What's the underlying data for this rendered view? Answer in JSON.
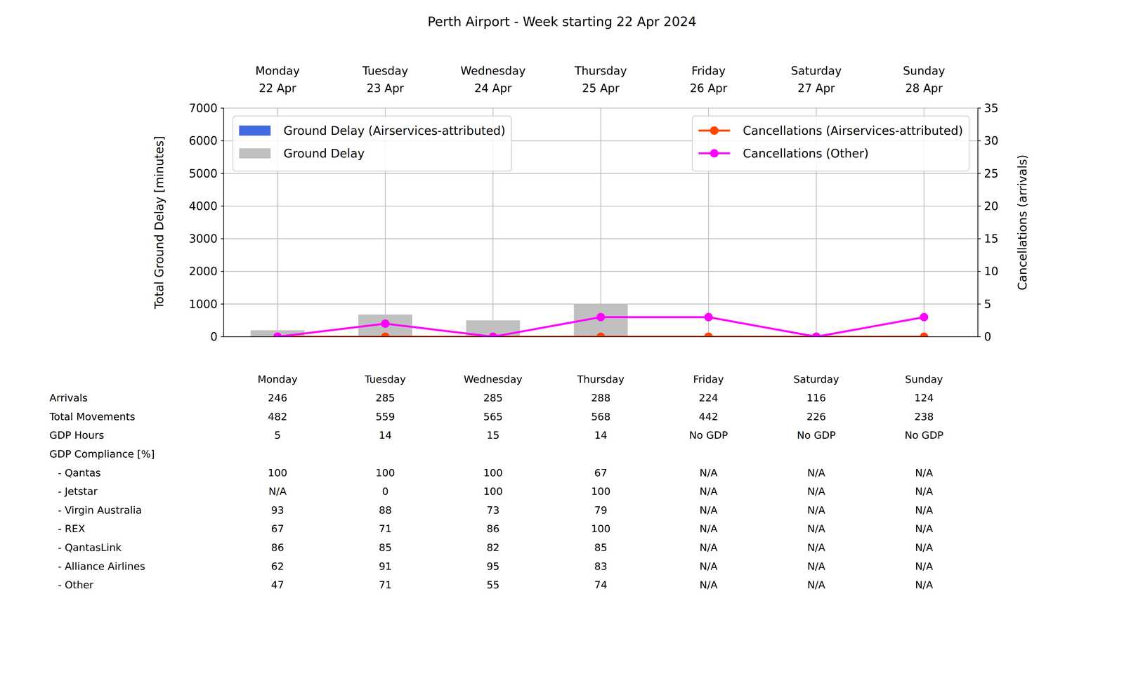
{
  "chart_data": {
    "type": "bar",
    "title": "Perth Airport - Week starting 22 Apr 2024",
    "categories": [
      "Monday\n22 Apr",
      "Tuesday\n23 Apr",
      "Wednesday\n24 Apr",
      "Thursday\n25 Apr",
      "Friday\n26 Apr",
      "Saturday\n27 Apr",
      "Sunday\n28 Apr"
    ],
    "y_label": "Total Ground Delay [minutes]",
    "y2_label": "Cancellations (arrivals)",
    "ylim": [
      0,
      7000
    ],
    "yticks": [
      0,
      1000,
      2000,
      3000,
      4000,
      5000,
      6000,
      7000
    ],
    "y2lim": [
      0,
      35
    ],
    "y2ticks": [
      0,
      5,
      10,
      15,
      20,
      25,
      30,
      35
    ],
    "grid": true,
    "legend": "upper left",
    "series": [
      {
        "name": "Ground Delay (Airservices-attributed)",
        "type": "bar",
        "color": "#4169e1",
        "values": [
          0,
          0,
          0,
          0,
          0,
          0,
          0
        ]
      },
      {
        "name": "Ground Delay",
        "type": "bar",
        "color": "#c0c0c0",
        "values": [
          200,
          680,
          500,
          1000,
          0,
          0,
          0
        ]
      },
      {
        "name": "Cancellations (Airservices-attributed)",
        "type": "line",
        "color": "#ff4500",
        "marker": "circle",
        "axis": "y2",
        "values": [
          0,
          0,
          0,
          0,
          0,
          0,
          0
        ]
      },
      {
        "name": "Cancellations (Other)",
        "type": "line",
        "color": "#ff00ff",
        "marker": "circle",
        "axis": "y2",
        "values": [
          0,
          2,
          0,
          3,
          3,
          0,
          3
        ]
      }
    ]
  },
  "table": {
    "columns": [
      "Monday",
      "Tuesday",
      "Wednesday",
      "Thursday",
      "Friday",
      "Saturday",
      "Sunday"
    ],
    "rows": [
      {
        "label": "Arrivals",
        "values": [
          246,
          285,
          285,
          288,
          224,
          116,
          124
        ]
      },
      {
        "label": "Total Movements",
        "values": [
          482,
          559,
          565,
          568,
          442,
          226,
          238
        ]
      },
      {
        "label": "GDP Hours",
        "values": [
          5,
          14,
          15,
          14,
          "No GDP",
          "No GDP",
          "No GDP"
        ]
      },
      {
        "label": "GDP Compliance [%]",
        "rows": [
          {
            "label": "- Qantas",
            "values": [
              100,
              100,
              100,
              67,
              "N/A",
              "N/A",
              "N/A"
            ]
          },
          {
            "label": "- Jetstar",
            "values": [
              "N/A",
              0,
              100,
              100,
              "N/A",
              "N/A",
              "N/A"
            ]
          },
          {
            "label": "- Virgin Australia",
            "values": [
              93,
              88,
              73,
              79,
              "N/A",
              "N/A",
              "N/A"
            ]
          },
          {
            "label": "- REX",
            "values": [
              67,
              71,
              86,
              100,
              "N/A",
              "N/A",
              "N/A"
            ]
          },
          {
            "label": "- QantasLink",
            "values": [
              86,
              85,
              82,
              85,
              "N/A",
              "N/A",
              "N/A"
            ]
          },
          {
            "label": "- Alliance Airlines",
            "values": [
              62,
              91,
              95,
              83,
              "N/A",
              "N/A",
              "N/A"
            ]
          },
          {
            "label": "- Other",
            "values": [
              47,
              71,
              55,
              74,
              "N/A",
              "N/A",
              "N/A"
            ]
          }
        ]
      }
    ]
  }
}
